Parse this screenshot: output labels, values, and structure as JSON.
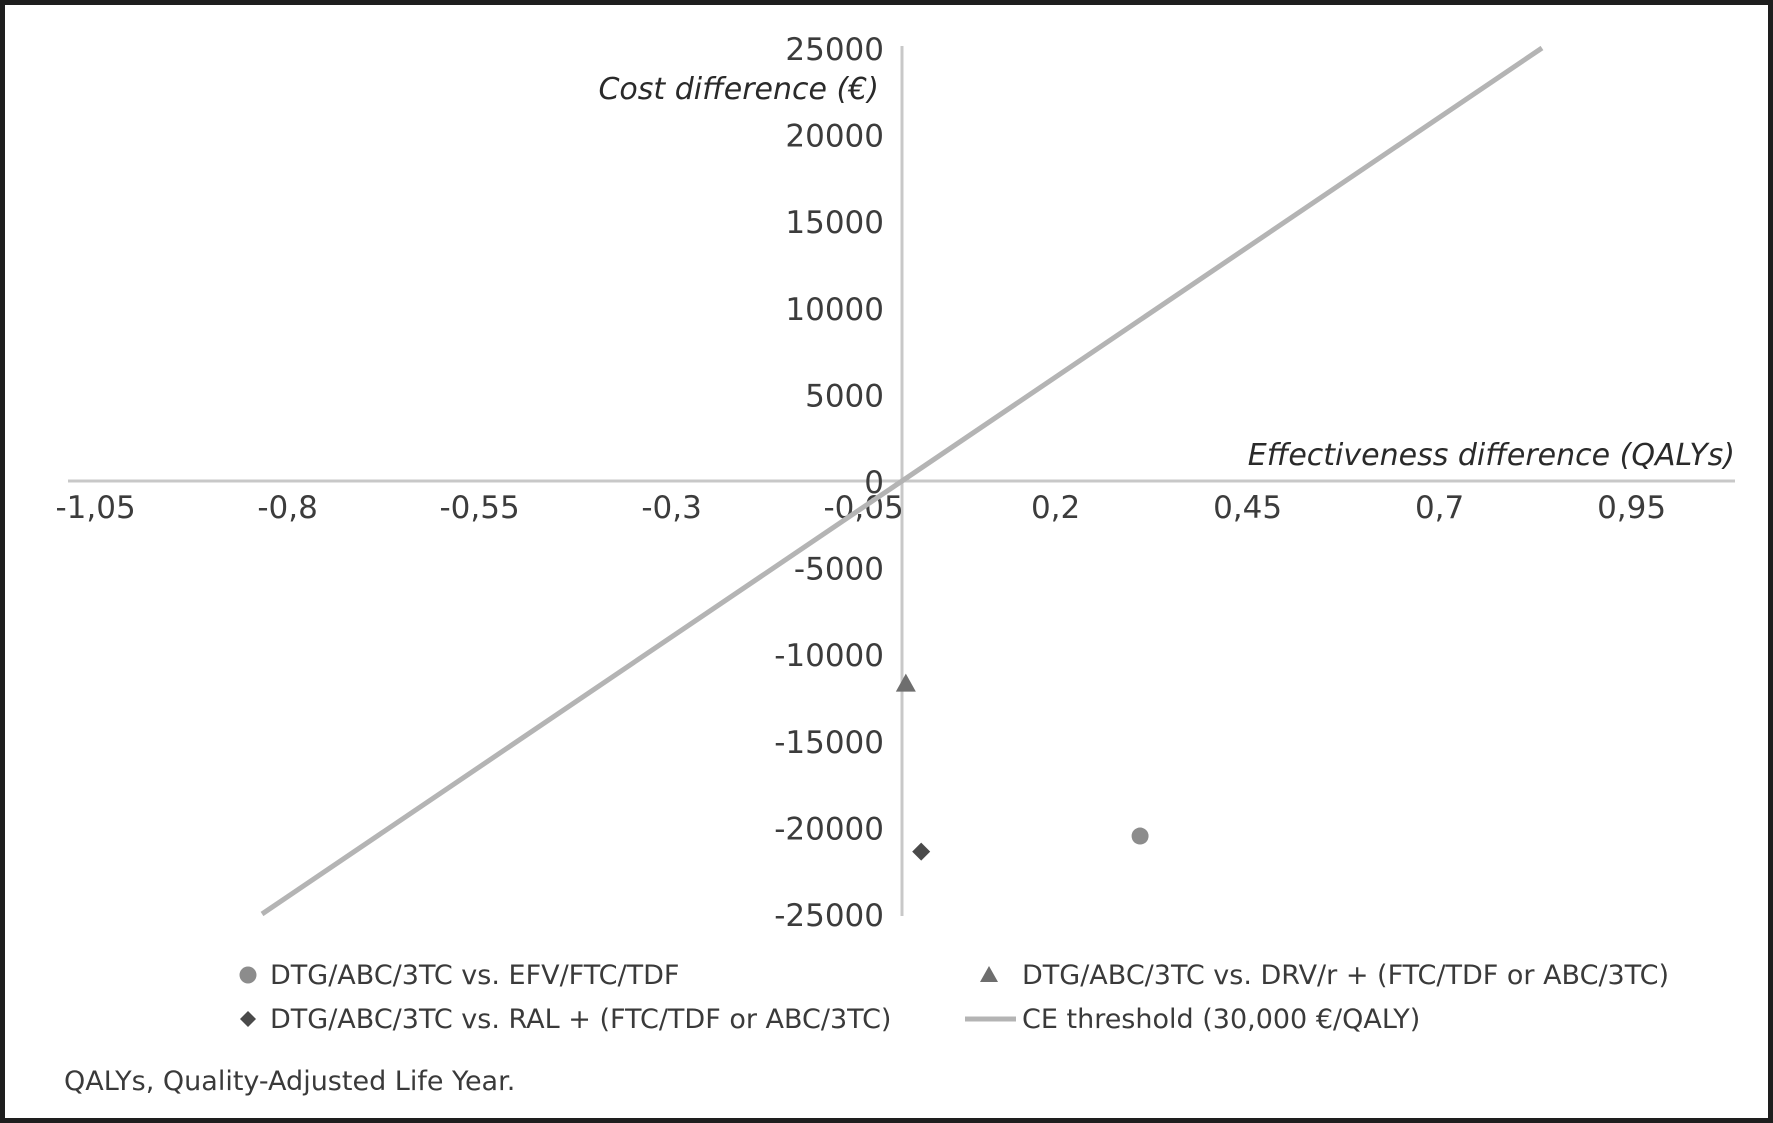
{
  "chart_data": {
    "type": "scatter",
    "xlabel": "Effectiveness difference (QALYs)",
    "ylabel": "Cost difference (€)",
    "xlim": [
      -1.05,
      1.2
    ],
    "ylim": [
      -25000,
      25000
    ],
    "x_ticks": [
      -1.05,
      -0.8,
      -0.55,
      -0.3,
      -0.05,
      0.2,
      0.45,
      0.7,
      0.95
    ],
    "x_tick_labels": [
      "-1,05",
      "-0,8",
      "-0,55",
      "-0,3",
      "-0,05",
      "0,2",
      "0,45",
      "0,7",
      "0,95"
    ],
    "y_ticks": [
      25000,
      20000,
      15000,
      10000,
      5000,
      0,
      -5000,
      -10000,
      -15000,
      -20000,
      -25000
    ],
    "y_tick_labels": [
      "25000",
      "20000",
      "15000",
      "10000",
      "5000",
      "0",
      "-5000",
      "-10000",
      "-15000",
      "-20000",
      "-25000"
    ],
    "grid": false,
    "legend_position": "bottom",
    "series": [
      {
        "name": "DTG/ABC/3TC vs. EFV/FTC/TDF",
        "marker": "circle",
        "color": "#8c8c8c",
        "points": [
          {
            "x": 0.31,
            "y": -20500
          }
        ]
      },
      {
        "name": "DTG/ABC/3TC vs. DRV/r + (FTC/TDF or ABC/3TC)",
        "marker": "triangle",
        "color": "#6e6e6e",
        "points": [
          {
            "x": 0.005,
            "y": -11700
          }
        ]
      },
      {
        "name": "DTG/ABC/3TC vs. RAL + (FTC/TDF or ABC/3TC)",
        "marker": "diamond",
        "color": "#4a4a4a",
        "points": [
          {
            "x": 0.025,
            "y": -21400
          }
        ]
      },
      {
        "name": "CE threshold (30,000 €/QALY)",
        "marker": "line",
        "color": "#b4b4b4",
        "points": [
          {
            "x": -0.8333,
            "y": -25000
          },
          {
            "x": 0.8333,
            "y": 25000
          }
        ]
      }
    ],
    "footnote": "QALYs, Quality-Adjusted Life Year."
  }
}
